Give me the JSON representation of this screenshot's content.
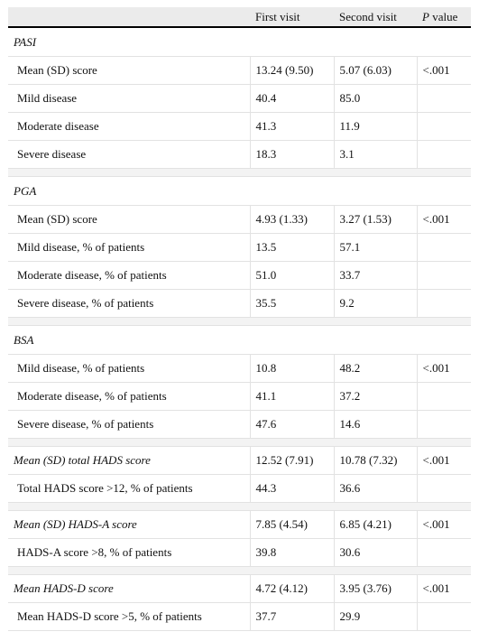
{
  "header": {
    "col1": "",
    "col2": "First visit",
    "col3": "Second visit",
    "col4_p": "P",
    "col4_rest": " value"
  },
  "sections": [
    {
      "title": "PASI",
      "rows": [
        {
          "label": "Mean (SD) score",
          "first": "13.24 (9.50)",
          "second": "5.07 (6.03)",
          "p": "<.001"
        },
        {
          "label": "Mild disease",
          "first": "40.4",
          "second": "85.0",
          "p": ""
        },
        {
          "label": "Moderate disease",
          "first": "41.3",
          "second": "11.9",
          "p": ""
        },
        {
          "label": "Severe disease",
          "first": "18.3",
          "second": "3.1",
          "p": ""
        }
      ]
    },
    {
      "title": "PGA",
      "rows": [
        {
          "label": "Mean (SD) score",
          "first": "4.93 (1.33)",
          "second": "3.27 (1.53)",
          "p": "<.001"
        },
        {
          "label": "Mild disease, % of patients",
          "first": "13.5",
          "second": "57.1",
          "p": ""
        },
        {
          "label": "Moderate disease, % of patients",
          "first": "51.0",
          "second": "33.7",
          "p": ""
        },
        {
          "label": "Severe disease, % of patients",
          "first": "35.5",
          "second": "9.2",
          "p": ""
        }
      ]
    },
    {
      "title": "BSA",
      "rows": [
        {
          "label": "Mild disease, % of patients",
          "first": "10.8",
          "second": "48.2",
          "p": "<.001"
        },
        {
          "label": "Moderate disease, % of patients",
          "first": "41.1",
          "second": "37.2",
          "p": ""
        },
        {
          "label": "Severe disease, % of patients",
          "first": "47.6",
          "second": "14.6",
          "p": ""
        }
      ]
    }
  ],
  "hads_total": {
    "label": "Mean (SD) total HADS score",
    "first": "12.52 (7.91)",
    "second": "10.78 (7.32)",
    "p": "<.001",
    "sub": {
      "label": "Total HADS score >12, % of patients",
      "first": "44.3",
      "second": "36.6",
      "p": ""
    }
  },
  "hads_a": {
    "label": "Mean (SD) HADS-A score",
    "first": "7.85 (4.54)",
    "second": "6.85 (4.21)",
    "p": "<.001",
    "sub": {
      "label": "HADS-A score >8, % of patients",
      "first": "39.8",
      "second": "30.6",
      "p": ""
    }
  },
  "hads_d": {
    "label": "Mean HADS-D score",
    "first": "4.72 (4.12)",
    "second": "3.95 (3.76)",
    "p": "<.001",
    "sub": {
      "label": "Mean HADS-D score >5, % of patients",
      "first": "37.7",
      "second": "29.9",
      "p": ""
    }
  }
}
